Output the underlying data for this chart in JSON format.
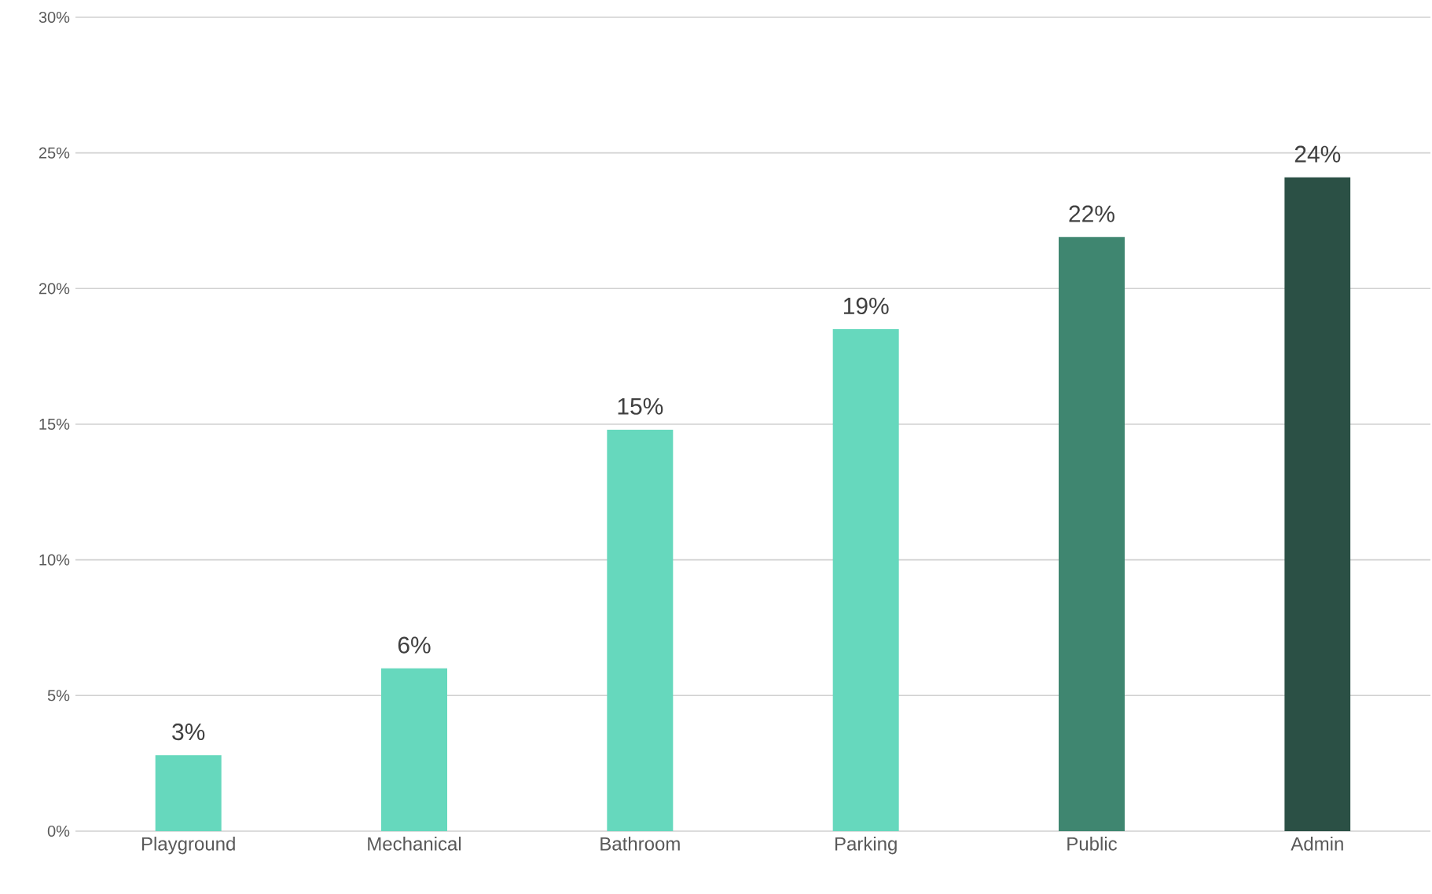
{
  "chart_data": {
    "type": "bar",
    "categories": [
      "Playground",
      "Mechanical",
      "Bathroom",
      "Parking",
      "Public",
      "Admin"
    ],
    "values": [
      2.8,
      6.0,
      14.8,
      18.5,
      21.9,
      24.1
    ],
    "value_labels": [
      "3%",
      "6%",
      "15%",
      "19%",
      "22%",
      "24%"
    ],
    "colors": [
      "#66d8bd",
      "#66d8bd",
      "#66d8bd",
      "#66d8bd",
      "#3f8670",
      "#2b5045"
    ],
    "ylim": [
      0,
      30
    ],
    "yticks": [
      {
        "value": 0,
        "label": "0%"
      },
      {
        "value": 5,
        "label": "5%"
      },
      {
        "value": 10,
        "label": "10%"
      },
      {
        "value": 15,
        "label": "15%"
      },
      {
        "value": 20,
        "label": "20%"
      },
      {
        "value": 25,
        "label": "25%"
      },
      {
        "value": 30,
        "label": "30%"
      }
    ],
    "grid": "y"
  }
}
